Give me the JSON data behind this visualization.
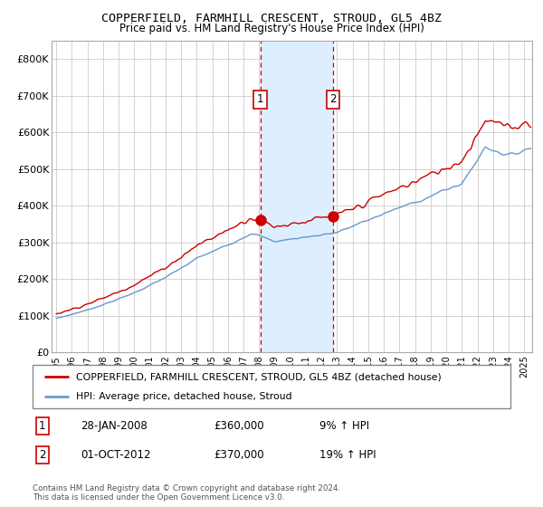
{
  "title": "COPPERFIELD, FARMHILL CRESCENT, STROUD, GL5 4BZ",
  "subtitle": "Price paid vs. HM Land Registry's House Price Index (HPI)",
  "ylim": [
    0,
    850000
  ],
  "yticks": [
    0,
    100000,
    200000,
    300000,
    400000,
    500000,
    600000,
    700000,
    800000
  ],
  "ytick_labels": [
    "£0",
    "£100K",
    "£200K",
    "£300K",
    "£400K",
    "£500K",
    "£600K",
    "£700K",
    "£800K"
  ],
  "background_color": "#ffffff",
  "grid_color": "#cccccc",
  "line1_color": "#cc0000",
  "line2_color": "#6699cc",
  "sale1_year": 2008.08,
  "sale1_price": 360000,
  "sale2_year": 2012.75,
  "sale2_price": 370000,
  "shade_color": "#ddeeff",
  "vline_color": "#cc0000",
  "legend_line1": "COPPERFIELD, FARMHILL CRESCENT, STROUD, GL5 4BZ (detached house)",
  "legend_line2": "HPI: Average price, detached house, Stroud",
  "table_row1": [
    "1",
    "28-JAN-2008",
    "£360,000",
    "9% ↑ HPI"
  ],
  "table_row2": [
    "2",
    "01-OCT-2012",
    "£370,000",
    "19% ↑ HPI"
  ],
  "footer": "Contains HM Land Registry data © Crown copyright and database right 2024.\nThis data is licensed under the Open Government Licence v3.0.",
  "xmin": 1995.0,
  "xmax": 2025.5
}
